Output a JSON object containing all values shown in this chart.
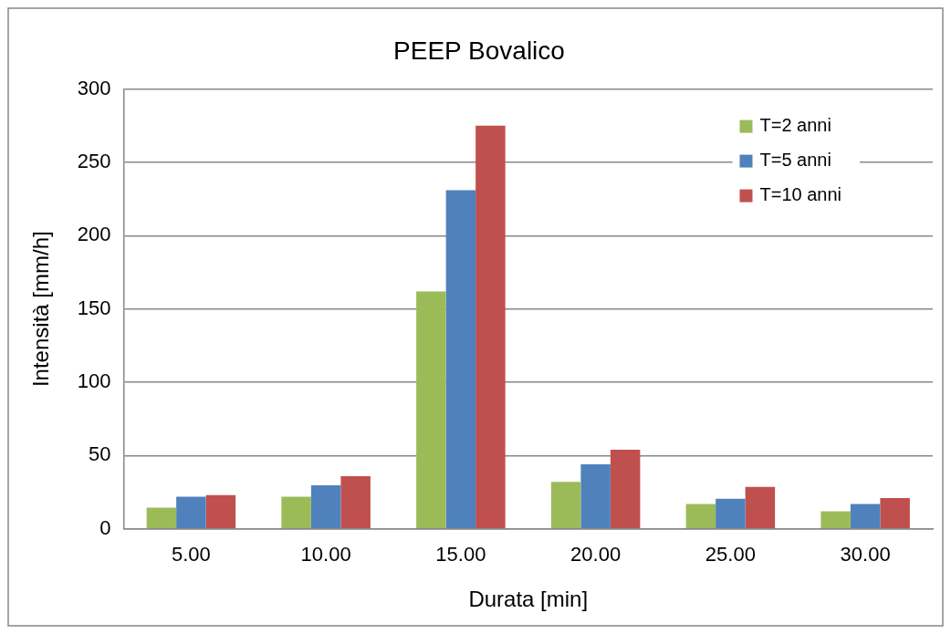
{
  "chart_data": {
    "type": "bar",
    "title": "PEEP Bovalico",
    "xlabel": "Durata [min]",
    "ylabel": "Intensità [mm/h]",
    "categories": [
      "5.00",
      "10.00",
      "15.00",
      "20.00",
      "25.00",
      "30.00"
    ],
    "series": [
      {
        "name": "T=2 anni",
        "color": "#9bbb59",
        "values": [
          14.5,
          22,
          162,
          32,
          17,
          12
        ]
      },
      {
        "name": "T=5 anni",
        "color": "#4f81bd",
        "values": [
          22,
          29.7,
          231,
          44,
          20.6,
          17
        ]
      },
      {
        "name": "T=10 anni",
        "color": "#c0504d",
        "values": [
          23,
          36,
          275,
          54,
          28.6,
          21
        ]
      }
    ],
    "ylim": [
      0,
      300
    ],
    "yticks": [
      0,
      50,
      100,
      150,
      200,
      250,
      300
    ],
    "grid": "y",
    "legend": "top right"
  }
}
